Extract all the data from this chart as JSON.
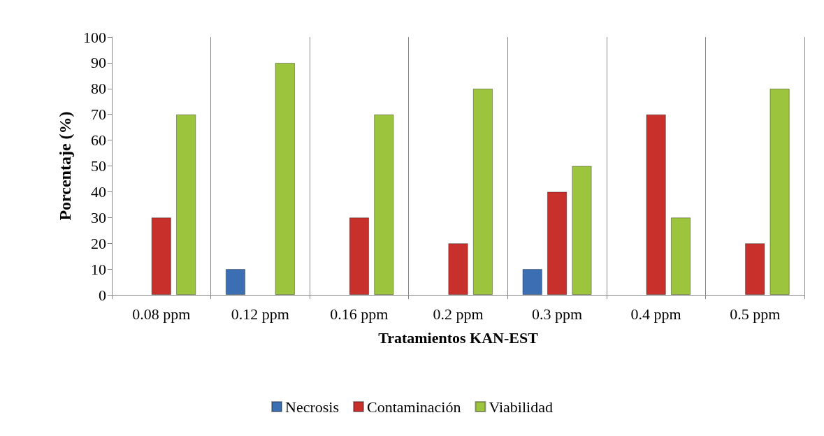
{
  "chart_data": {
    "type": "bar",
    "xlabel": "Tratamientos KAN-EST",
    "ylabel": "Porcentaje (%)",
    "categories": [
      "0.08 ppm",
      "0.12 ppm",
      "0.16 ppm",
      "0.2 ppm",
      "0.3 ppm",
      "0.4 ppm",
      "0.5 ppm"
    ],
    "series": [
      {
        "name": "Necrosis",
        "color": "#3c6eb4",
        "values": [
          null,
          10,
          null,
          null,
          10,
          null,
          null
        ]
      },
      {
        "name": "Contaminación",
        "color": "#c8302c",
        "values": [
          30,
          null,
          30,
          20,
          40,
          70,
          20
        ]
      },
      {
        "name": "Viabilidad",
        "color": "#9cc43c",
        "values": [
          70,
          90,
          70,
          80,
          50,
          30,
          80
        ]
      }
    ],
    "ylim": [
      0,
      100
    ],
    "yticks": [
      0,
      10,
      20,
      30,
      40,
      50,
      60,
      70,
      80,
      90,
      100
    ],
    "grid": "x",
    "legend": "bottom"
  }
}
